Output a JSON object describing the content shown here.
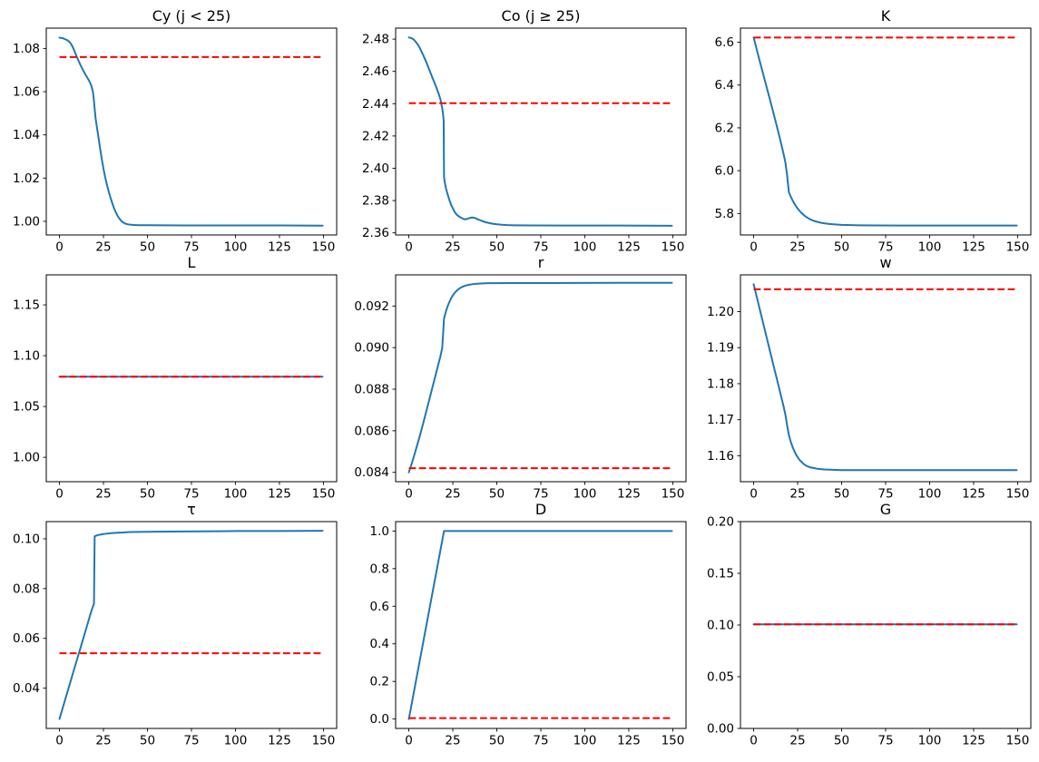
{
  "figure_colors": {
    "transition_line": "#1f77b4",
    "steady_state_line": "#ff0000",
    "spine": "#000000",
    "text": "#000000",
    "background": "#ffffff"
  },
  "chart_data": [
    {
      "type": "line",
      "id": "cy",
      "title": "Cy (j < 25)",
      "xlabel": "",
      "ylabel": "",
      "grid": false,
      "legend": null,
      "xlim": [
        -7.5,
        157.5
      ],
      "xticks": [
        0,
        25,
        50,
        75,
        100,
        125,
        150
      ],
      "ylim": [
        0.9937,
        1.0894
      ],
      "yticks": [
        1.0,
        1.02,
        1.04,
        1.06,
        1.08
      ],
      "ydecimals": 2,
      "steady_state": 1.076,
      "line": [
        [
          0,
          1.085
        ],
        [
          2,
          1.0847
        ],
        [
          4,
          1.084
        ],
        [
          5,
          1.0835
        ],
        [
          6,
          1.0827
        ],
        [
          7,
          1.0815
        ],
        [
          8,
          1.0798
        ],
        [
          9,
          1.0778
        ],
        [
          10,
          1.0758
        ],
        [
          11,
          1.074
        ],
        [
          12,
          1.0722
        ],
        [
          13,
          1.0706
        ],
        [
          14,
          1.069
        ],
        [
          15,
          1.0676
        ],
        [
          16,
          1.0662
        ],
        [
          17,
          1.0648
        ],
        [
          18,
          1.063
        ],
        [
          19,
          1.06
        ],
        [
          19.5,
          1.0565
        ],
        [
          20,
          1.052
        ],
        [
          20.5,
          1.0478
        ],
        [
          21,
          1.045
        ],
        [
          22,
          1.0398
        ],
        [
          23,
          1.0342
        ],
        [
          24,
          1.029
        ],
        [
          25,
          1.0243
        ],
        [
          26,
          1.0203
        ],
        [
          27,
          1.0168
        ],
        [
          28,
          1.0137
        ],
        [
          29,
          1.0109
        ],
        [
          30,
          1.0084
        ],
        [
          31,
          1.0061
        ],
        [
          32,
          1.0042
        ],
        [
          33,
          1.0026
        ],
        [
          34,
          1.0013
        ],
        [
          35,
          1.0003
        ],
        [
          36,
          0.9996
        ],
        [
          37,
          0.9991
        ],
        [
          38,
          0.9988
        ],
        [
          39,
          0.9986
        ],
        [
          40,
          0.9985
        ],
        [
          42,
          0.9983
        ],
        [
          45,
          0.9982
        ],
        [
          50,
          0.9982
        ],
        [
          70,
          0.9981
        ],
        [
          100,
          0.9981
        ],
        [
          125,
          0.9981
        ],
        [
          149.5,
          0.998
        ]
      ]
    },
    {
      "type": "line",
      "id": "co",
      "title": "Co (j ≥ 25)",
      "xlabel": "",
      "ylabel": "",
      "grid": false,
      "legend": null,
      "xlim": [
        -7.5,
        157.5
      ],
      "xticks": [
        0,
        25,
        50,
        75,
        100,
        125,
        150
      ],
      "ylim": [
        2.3587,
        2.4868
      ],
      "yticks": [
        2.36,
        2.38,
        2.4,
        2.42,
        2.44,
        2.46,
        2.48
      ],
      "ydecimals": 2,
      "steady_state": 2.4403,
      "line": [
        [
          0,
          2.481
        ],
        [
          1,
          2.4808
        ],
        [
          2,
          2.4803
        ],
        [
          3,
          2.4795
        ],
        [
          4,
          2.4782
        ],
        [
          5,
          2.4768
        ],
        [
          6,
          2.475
        ],
        [
          7,
          2.4728
        ],
        [
          8,
          2.4705
        ],
        [
          9,
          2.468
        ],
        [
          10,
          2.4655
        ],
        [
          11,
          2.4628
        ],
        [
          12,
          2.46
        ],
        [
          13,
          2.4572
        ],
        [
          14,
          2.4545
        ],
        [
          15,
          2.4518
        ],
        [
          16,
          2.449
        ],
        [
          17,
          2.446
        ],
        [
          18,
          2.4425
        ],
        [
          19,
          2.437
        ],
        [
          19.5,
          2.433
        ],
        [
          19.8,
          2.4295
        ],
        [
          20,
          2.395
        ],
        [
          20.3,
          2.392
        ],
        [
          21,
          2.388
        ],
        [
          22,
          2.384
        ],
        [
          23,
          2.3805
        ],
        [
          24,
          2.3775
        ],
        [
          25,
          2.3752
        ],
        [
          26,
          2.373
        ],
        [
          27,
          2.3715
        ],
        [
          28,
          2.3705
        ],
        [
          29,
          2.3698
        ],
        [
          30,
          2.3692
        ],
        [
          31,
          2.3686
        ],
        [
          32,
          2.3684
        ],
        [
          33,
          2.3686
        ],
        [
          34,
          2.369
        ],
        [
          35,
          2.3693
        ],
        [
          36,
          2.3695
        ],
        [
          37,
          2.3694
        ],
        [
          38,
          2.369
        ],
        [
          39,
          2.3685
        ],
        [
          40,
          2.368
        ],
        [
          42,
          2.3672
        ],
        [
          44,
          2.3665
        ],
        [
          46,
          2.366
        ],
        [
          48,
          2.3656
        ],
        [
          50,
          2.3653
        ],
        [
          53,
          2.365
        ],
        [
          56,
          2.3648
        ],
        [
          60,
          2.3647
        ],
        [
          70,
          2.3646
        ],
        [
          90,
          2.3645
        ],
        [
          120,
          2.3645
        ],
        [
          149.5,
          2.3644
        ]
      ]
    },
    {
      "type": "line",
      "id": "k",
      "title": "K",
      "xlabel": "",
      "ylabel": "",
      "grid": false,
      "legend": null,
      "xlim": [
        -7.5,
        157.5
      ],
      "xticks": [
        0,
        25,
        50,
        75,
        100,
        125,
        150
      ],
      "ylim": [
        5.6996,
        6.6659
      ],
      "yticks": [
        5.8,
        6.0,
        6.2,
        6.4,
        6.6
      ],
      "ydecimals": 1,
      "steady_state": 6.622,
      "line": [
        [
          0,
          6.622
        ],
        [
          1,
          6.59
        ],
        [
          2,
          6.558
        ],
        [
          3,
          6.526
        ],
        [
          4,
          6.495
        ],
        [
          5,
          6.464
        ],
        [
          6,
          6.433
        ],
        [
          7,
          6.402
        ],
        [
          8,
          6.371
        ],
        [
          9,
          6.34
        ],
        [
          10,
          6.309
        ],
        [
          11,
          6.277
        ],
        [
          12,
          6.245
        ],
        [
          13,
          6.213
        ],
        [
          14,
          6.18
        ],
        [
          15,
          6.147
        ],
        [
          16,
          6.113
        ],
        [
          17,
          6.078
        ],
        [
          18,
          6.04
        ],
        [
          19,
          5.98
        ],
        [
          20,
          5.9
        ],
        [
          21,
          5.88
        ],
        [
          22,
          5.863
        ],
        [
          23,
          5.848
        ],
        [
          24,
          5.835
        ],
        [
          25,
          5.823
        ],
        [
          26,
          5.813
        ],
        [
          27,
          5.804
        ],
        [
          28,
          5.796
        ],
        [
          29,
          5.789
        ],
        [
          30,
          5.783
        ],
        [
          32,
          5.773
        ],
        [
          34,
          5.766
        ],
        [
          36,
          5.761
        ],
        [
          38,
          5.757
        ],
        [
          40,
          5.754
        ],
        [
          43,
          5.751
        ],
        [
          46,
          5.749
        ],
        [
          50,
          5.747
        ],
        [
          55,
          5.7455
        ],
        [
          60,
          5.7448
        ],
        [
          70,
          5.7442
        ],
        [
          85,
          5.7438
        ],
        [
          110,
          5.7436
        ],
        [
          149.5,
          5.7435
        ]
      ]
    },
    {
      "type": "line",
      "id": "l",
      "title": "L",
      "xlabel": "",
      "ylabel": "",
      "grid": false,
      "legend": null,
      "xlim": [
        -7.5,
        157.5
      ],
      "xticks": [
        0,
        25,
        50,
        75,
        100,
        125,
        150
      ],
      "ylim": [
        0.976,
        1.1795
      ],
      "yticks": [
        1.0,
        1.05,
        1.1,
        1.15
      ],
      "ydecimals": 2,
      "steady_state": 1.0793,
      "line": [
        [
          0,
          1.0793
        ],
        [
          149.5,
          1.0793
        ]
      ]
    },
    {
      "type": "line",
      "id": "r",
      "title": "r",
      "xlabel": "",
      "ylabel": "",
      "grid": false,
      "legend": null,
      "xlim": [
        -7.5,
        157.5
      ],
      "xticks": [
        0,
        25,
        50,
        75,
        100,
        125,
        150
      ],
      "ylim": [
        0.08355,
        0.0935
      ],
      "yticks": [
        0.084,
        0.086,
        0.088,
        0.09,
        0.092
      ],
      "ydecimals": 3,
      "steady_state": 0.0842,
      "line": [
        [
          0,
          0.084
        ],
        [
          1,
          0.08425
        ],
        [
          2,
          0.08452
        ],
        [
          3,
          0.0848
        ],
        [
          4,
          0.08509
        ],
        [
          5,
          0.08538
        ],
        [
          6,
          0.08568
        ],
        [
          7,
          0.08599
        ],
        [
          8,
          0.08631
        ],
        [
          9,
          0.08663
        ],
        [
          10,
          0.08696
        ],
        [
          11,
          0.08729
        ],
        [
          12,
          0.08762
        ],
        [
          13,
          0.08795
        ],
        [
          14,
          0.08828
        ],
        [
          15,
          0.08861
        ],
        [
          16,
          0.08894
        ],
        [
          17,
          0.08927
        ],
        [
          18,
          0.0896
        ],
        [
          19,
          0.09
        ],
        [
          20,
          0.0914
        ],
        [
          21,
          0.09172
        ],
        [
          22,
          0.09198
        ],
        [
          23,
          0.09219
        ],
        [
          24,
          0.09237
        ],
        [
          25,
          0.09251
        ],
        [
          26,
          0.09263
        ],
        [
          27,
          0.09272
        ],
        [
          28,
          0.0928
        ],
        [
          30,
          0.09291
        ],
        [
          32,
          0.09298
        ],
        [
          34,
          0.09302
        ],
        [
          36,
          0.09305
        ],
        [
          38,
          0.09307
        ],
        [
          40,
          0.09308
        ],
        [
          45,
          0.0931
        ],
        [
          50,
          0.0931
        ],
        [
          60,
          0.09311
        ],
        [
          80,
          0.09311
        ],
        [
          120,
          0.09312
        ],
        [
          149.5,
          0.09312
        ]
      ]
    },
    {
      "type": "line",
      "id": "w",
      "title": "w",
      "xlabel": "",
      "ylabel": "",
      "grid": false,
      "legend": null,
      "xlim": [
        -7.5,
        157.5
      ],
      "xticks": [
        0,
        25,
        50,
        75,
        100,
        125,
        150
      ],
      "ylim": [
        1.1528,
        1.2102
      ],
      "yticks": [
        1.16,
        1.17,
        1.18,
        1.19,
        1.2
      ],
      "ydecimals": 2,
      "steady_state": 1.2062,
      "line": [
        [
          0,
          1.2076
        ],
        [
          1,
          1.2056
        ],
        [
          2,
          1.2036
        ],
        [
          3,
          1.2016
        ],
        [
          4,
          1.1996
        ],
        [
          5,
          1.1976
        ],
        [
          6,
          1.1956
        ],
        [
          7,
          1.1936
        ],
        [
          8,
          1.1916
        ],
        [
          9,
          1.1896
        ],
        [
          10,
          1.1876
        ],
        [
          11,
          1.1856
        ],
        [
          12,
          1.1836
        ],
        [
          13,
          1.1817
        ],
        [
          14,
          1.1797
        ],
        [
          15,
          1.1777
        ],
        [
          16,
          1.1757
        ],
        [
          17,
          1.1737
        ],
        [
          18,
          1.1715
        ],
        [
          19,
          1.1685
        ],
        [
          20,
          1.1658
        ],
        [
          21,
          1.164
        ],
        [
          22,
          1.1626
        ],
        [
          23,
          1.1614
        ],
        [
          24,
          1.1604
        ],
        [
          25,
          1.1596
        ],
        [
          26,
          1.1589
        ],
        [
          27,
          1.1584
        ],
        [
          28,
          1.1579
        ],
        [
          29,
          1.1575
        ],
        [
          30,
          1.1572
        ],
        [
          32,
          1.1568
        ],
        [
          34,
          1.1566
        ],
        [
          36,
          1.1564
        ],
        [
          38,
          1.1563
        ],
        [
          40,
          1.1562
        ],
        [
          45,
          1.1561
        ],
        [
          50,
          1.156
        ],
        [
          60,
          1.156
        ],
        [
          80,
          1.156
        ],
        [
          120,
          1.156
        ],
        [
          149.5,
          1.156
        ]
      ]
    },
    {
      "type": "line",
      "id": "tau",
      "title": "τ",
      "xlabel": "",
      "ylabel": "",
      "grid": false,
      "legend": null,
      "xlim": [
        -7.5,
        157.5
      ],
      "xticks": [
        0,
        25,
        50,
        75,
        100,
        125,
        150
      ],
      "ylim": [
        0.0238,
        0.1069
      ],
      "yticks": [
        0.04,
        0.06,
        0.08,
        0.1
      ],
      "ydecimals": 2,
      "steady_state": 0.054,
      "line": [
        [
          0,
          0.0276
        ],
        [
          2,
          0.0324
        ],
        [
          4,
          0.0372
        ],
        [
          6,
          0.042
        ],
        [
          8,
          0.0468
        ],
        [
          10,
          0.0516
        ],
        [
          12,
          0.0563
        ],
        [
          14,
          0.0611
        ],
        [
          16,
          0.0659
        ],
        [
          18,
          0.0707
        ],
        [
          19,
          0.0727
        ],
        [
          19.6,
          0.074
        ],
        [
          20,
          0.101
        ],
        [
          21,
          0.1013
        ],
        [
          22,
          0.1015
        ],
        [
          24,
          0.1018
        ],
        [
          26,
          0.102
        ],
        [
          30,
          0.1023
        ],
        [
          35,
          0.1025
        ],
        [
          40,
          0.1027
        ],
        [
          50,
          0.1028
        ],
        [
          60,
          0.1029
        ],
        [
          80,
          0.103
        ],
        [
          100,
          0.1031
        ],
        [
          125,
          0.1031
        ],
        [
          149.5,
          0.1032
        ]
      ]
    },
    {
      "type": "line",
      "id": "d",
      "title": "D",
      "xlabel": "",
      "ylabel": "",
      "grid": false,
      "legend": null,
      "xlim": [
        -7.5,
        157.5
      ],
      "xticks": [
        0,
        25,
        50,
        75,
        100,
        125,
        150
      ],
      "ylim": [
        -0.05,
        1.05
      ],
      "yticks": [
        0.0,
        0.2,
        0.4,
        0.6,
        0.8,
        1.0
      ],
      "ydecimals": 1,
      "steady_state": 0.005,
      "line": [
        [
          0,
          0.0
        ],
        [
          20,
          1.0
        ],
        [
          149.5,
          1.0
        ]
      ]
    },
    {
      "type": "line",
      "id": "g",
      "title": "G",
      "xlabel": "",
      "ylabel": "",
      "grid": false,
      "legend": null,
      "xlim": [
        -7.5,
        157.5
      ],
      "xticks": [
        0,
        25,
        50,
        75,
        100,
        125,
        150
      ],
      "ylim": [
        0.0,
        0.2
      ],
      "yticks": [
        0.0,
        0.05,
        0.1,
        0.15,
        0.2
      ],
      "ydecimals": 2,
      "steady_state": 0.1007,
      "line": [
        [
          0,
          0.1007
        ],
        [
          149.5,
          0.1007
        ]
      ]
    }
  ]
}
